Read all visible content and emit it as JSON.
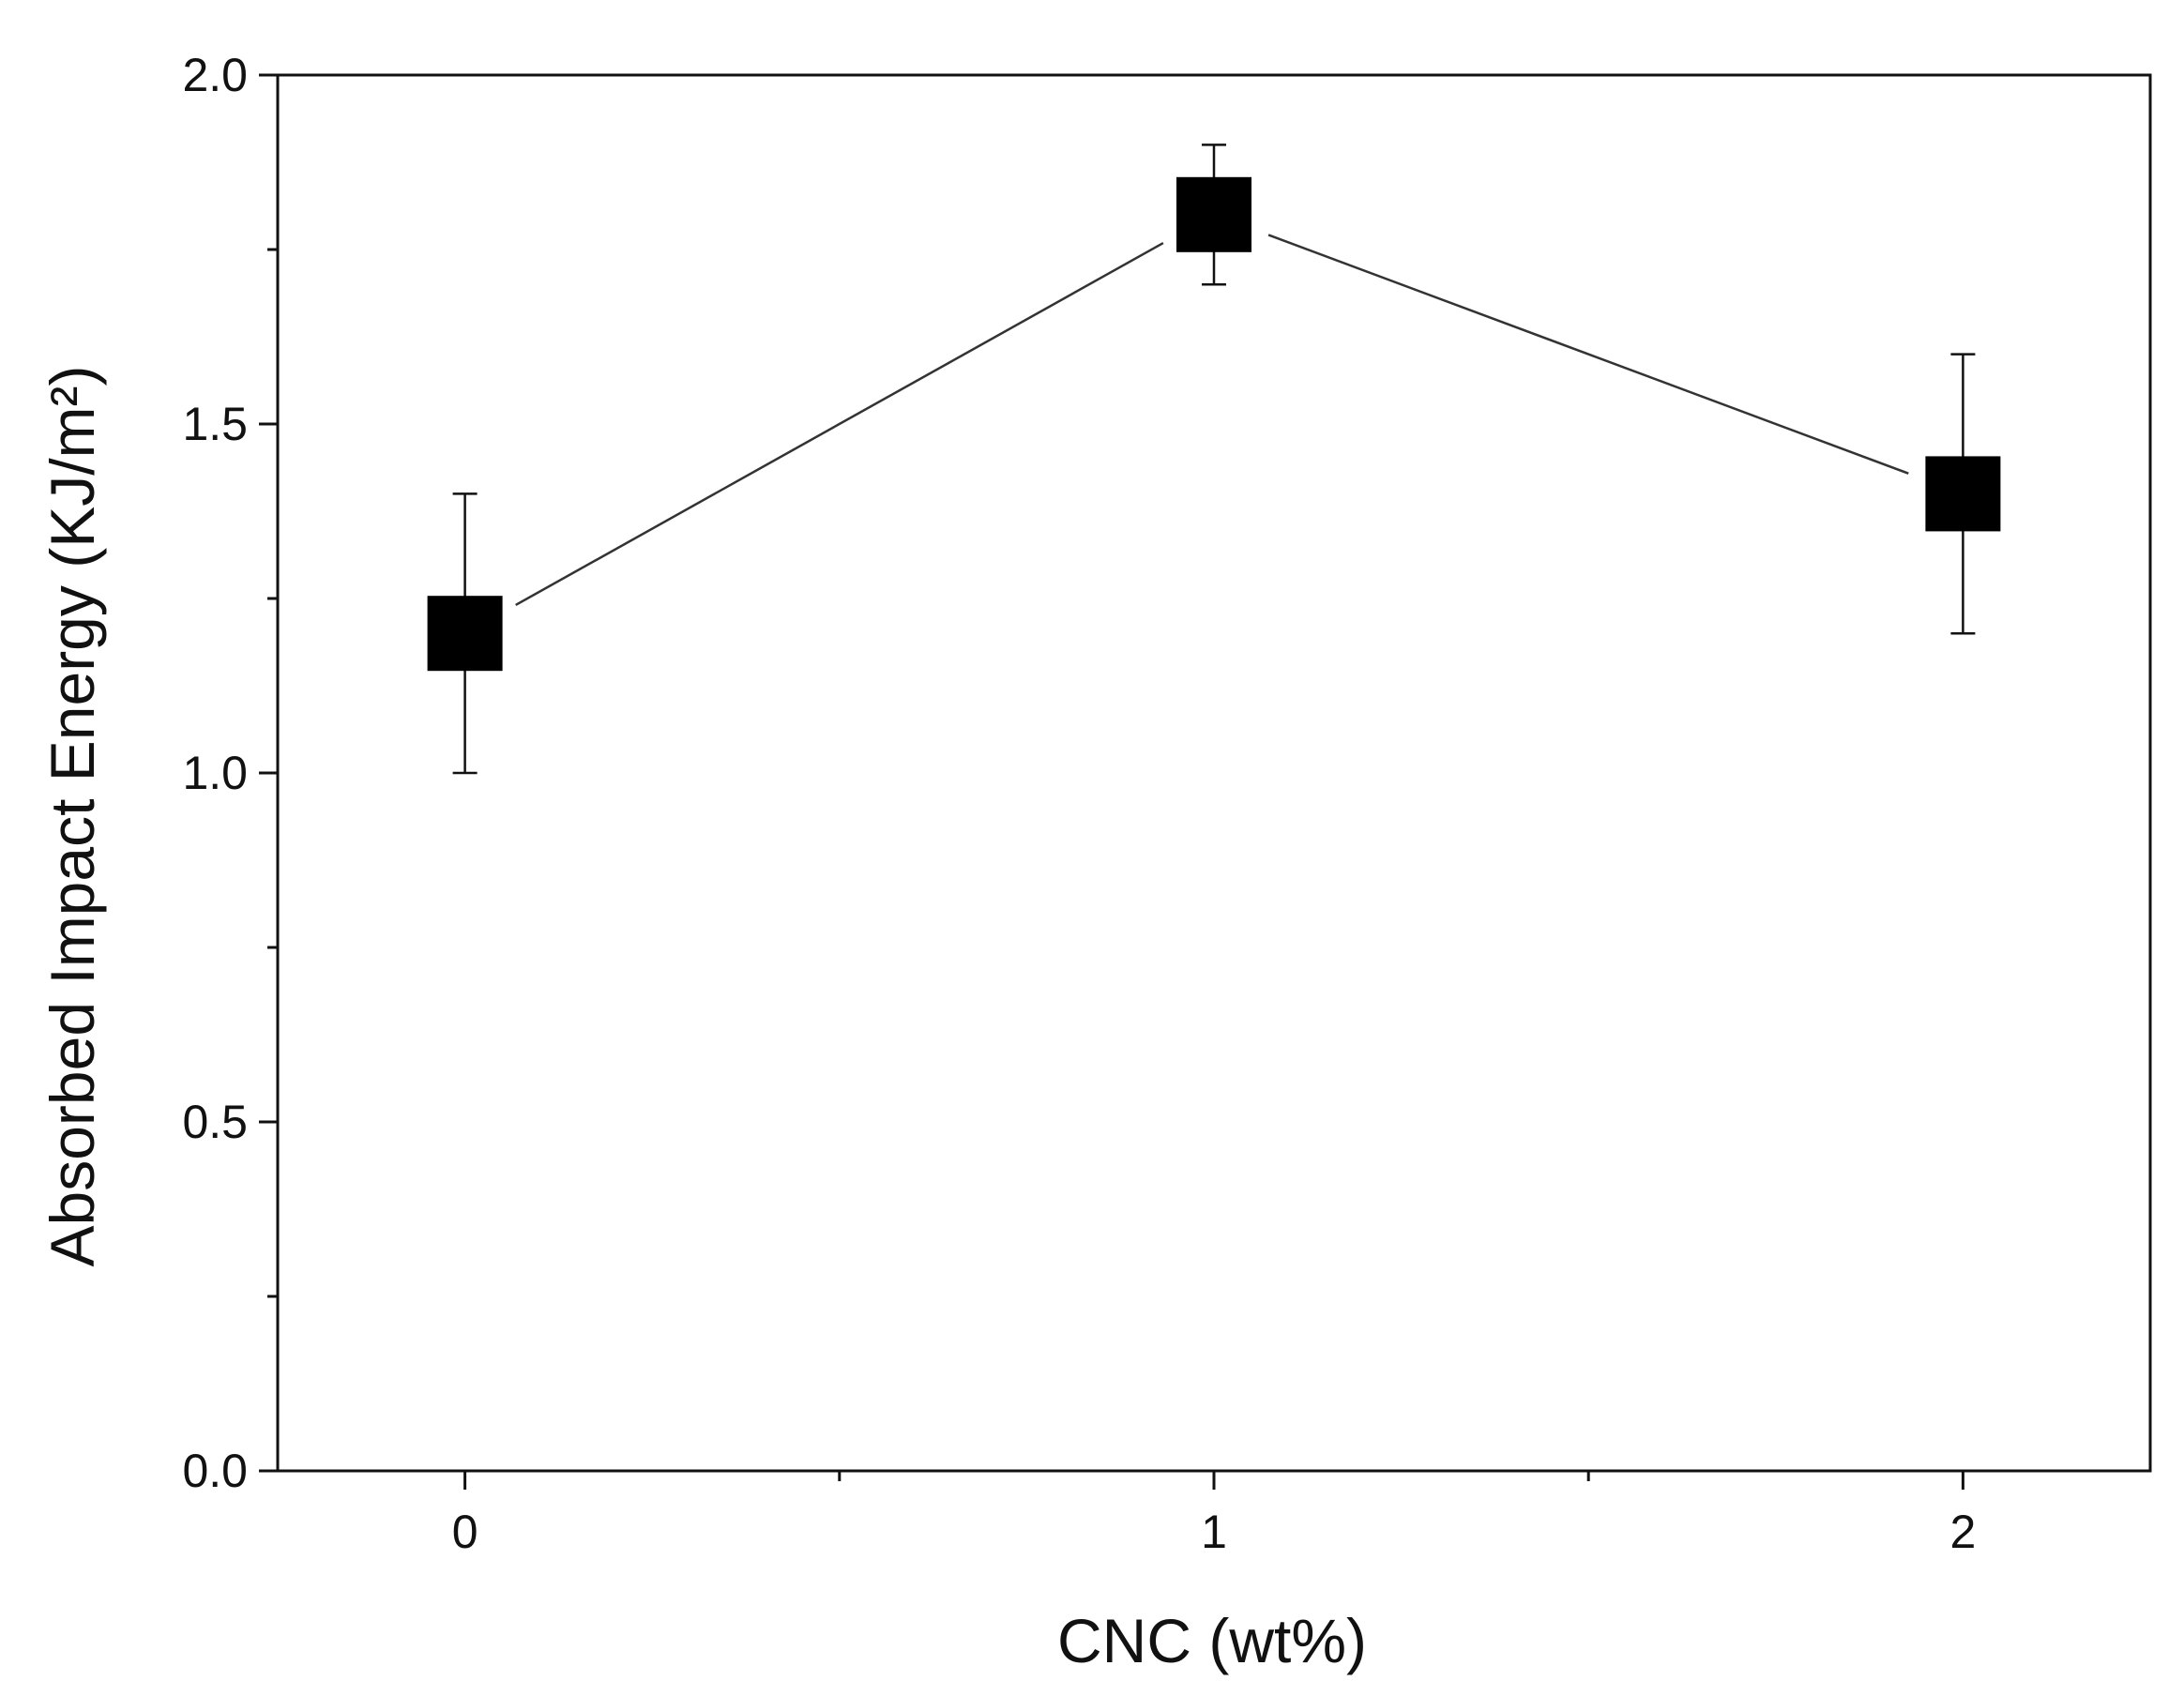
{
  "chart_data": {
    "type": "line",
    "title": "",
    "xlabel": "CNC (wt%)",
    "ylabel": "Absorbed Impact Energy (KJ/m²)",
    "xlim": [
      -0.25,
      2.25
    ],
    "ylim": [
      0.0,
      2.0
    ],
    "x_ticks": [
      0,
      1,
      2
    ],
    "x_tick_labels": [
      "0",
      "1",
      "2"
    ],
    "x_minor_ticks": [
      0.5,
      1.5
    ],
    "y_ticks": [
      0.0,
      0.5,
      1.0,
      1.5,
      2.0
    ],
    "y_tick_labels": [
      "0.0",
      "0.5",
      "1.0",
      "1.5",
      "2.0"
    ],
    "y_minor_ticks": [
      0.25,
      0.75,
      1.25,
      1.75
    ],
    "grid": false,
    "legend": "none",
    "marker": "square",
    "series": [
      {
        "x": [
          0,
          1,
          2
        ],
        "values": [
          1.2,
          1.8,
          1.4
        ],
        "error_low": [
          1.0,
          1.7,
          1.2
        ],
        "error_high": [
          1.4,
          1.9,
          1.6
        ],
        "marker_color": "#000000",
        "line_color": "#333333"
      }
    ]
  }
}
